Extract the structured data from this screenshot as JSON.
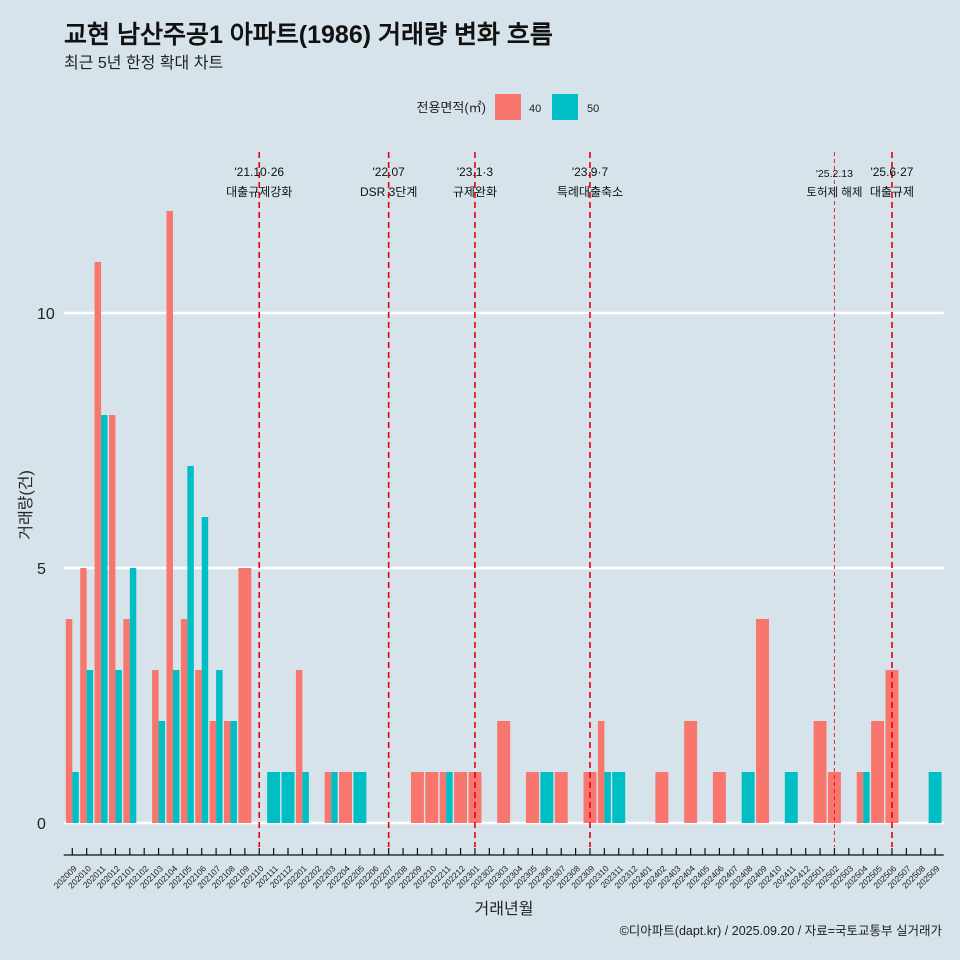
{
  "chart_data": {
    "type": "bar",
    "title": "교현 남산주공1 아파트(1986) 거래량 변화 흐름",
    "subtitle": "최근 5년 한정 확대 차트",
    "xlabel": "거래년월",
    "ylabel": "거래량(건)",
    "yticks": [
      "0",
      "5",
      "10"
    ],
    "ylim": [
      0,
      13
    ],
    "grid": "horizontal-major",
    "legend": {
      "title": "전용면적(㎡)",
      "position": "top"
    },
    "categories": [
      "202009",
      "202010",
      "202011",
      "202012",
      "202101",
      "202102",
      "202103",
      "202104",
      "202105",
      "202106",
      "202107",
      "202108",
      "202109",
      "202110",
      "202111",
      "202112",
      "202201",
      "202202",
      "202203",
      "202204",
      "202205",
      "202206",
      "202207",
      "202208",
      "202209",
      "202210",
      "202211",
      "202212",
      "202301",
      "202302",
      "202303",
      "202304",
      "202305",
      "202306",
      "202307",
      "202308",
      "202309",
      "202310",
      "202311",
      "202312",
      "202401",
      "202402",
      "202403",
      "202404",
      "202405",
      "202406",
      "202407",
      "202408",
      "202409",
      "202410",
      "202411",
      "202412",
      "202501",
      "202502",
      "202503",
      "202504",
      "202505",
      "202506",
      "202507",
      "202508",
      "202509"
    ],
    "series": [
      {
        "name": "40",
        "color": "#F8766D",
        "values": [
          4,
          5,
          11,
          8,
          4,
          0,
          3,
          12,
          4,
          3,
          2,
          2,
          5,
          0,
          0,
          0,
          3,
          0,
          1,
          1,
          0,
          0,
          0,
          0,
          1,
          1,
          1,
          1,
          1,
          0,
          2,
          0,
          1,
          0,
          1,
          0,
          1,
          2,
          0,
          0,
          0,
          1,
          0,
          2,
          0,
          1,
          0,
          0,
          4,
          0,
          0,
          0,
          2,
          1,
          0,
          1,
          2,
          3,
          0,
          0,
          0
        ]
      },
      {
        "name": "50",
        "color": "#00BFC4",
        "values": [
          1,
          3,
          8,
          3,
          5,
          0,
          2,
          3,
          7,
          6,
          3,
          2,
          0,
          0,
          1,
          1,
          1,
          0,
          1,
          0,
          1,
          0,
          0,
          0,
          0,
          0,
          1,
          0,
          0,
          0,
          0,
          0,
          0,
          1,
          0,
          0,
          0,
          1,
          1,
          0,
          0,
          0,
          0,
          0,
          0,
          0,
          0,
          1,
          0,
          0,
          1,
          0,
          0,
          0,
          0,
          1,
          0,
          0,
          0,
          0,
          1
        ]
      }
    ],
    "annotations": [
      {
        "category": "202110",
        "date": "'21.10·26",
        "label": "대출규제강화",
        "line": "dashed"
      },
      {
        "category": "202207",
        "date": "'22.07",
        "label": "DSR 3단계",
        "line": "dashed"
      },
      {
        "category": "202301",
        "date": "'23.1·3",
        "label": "규제완화",
        "line": "dashed"
      },
      {
        "category": "202309",
        "date": "'23.9·7",
        "label": "특례대출축소",
        "line": "dashed"
      },
      {
        "category": "202502",
        "date": "'25.2.13",
        "label": "토허제 해제",
        "line": "thin-dashed"
      },
      {
        "category": "202506",
        "date": "'25.6·27",
        "label": "대출규제",
        "line": "dashed"
      }
    ],
    "annotation_color": "#E8000B",
    "caption": "©디아파트(dapt.kr) / 2025.09.20 / 자료=국토교통부 실거래가"
  }
}
